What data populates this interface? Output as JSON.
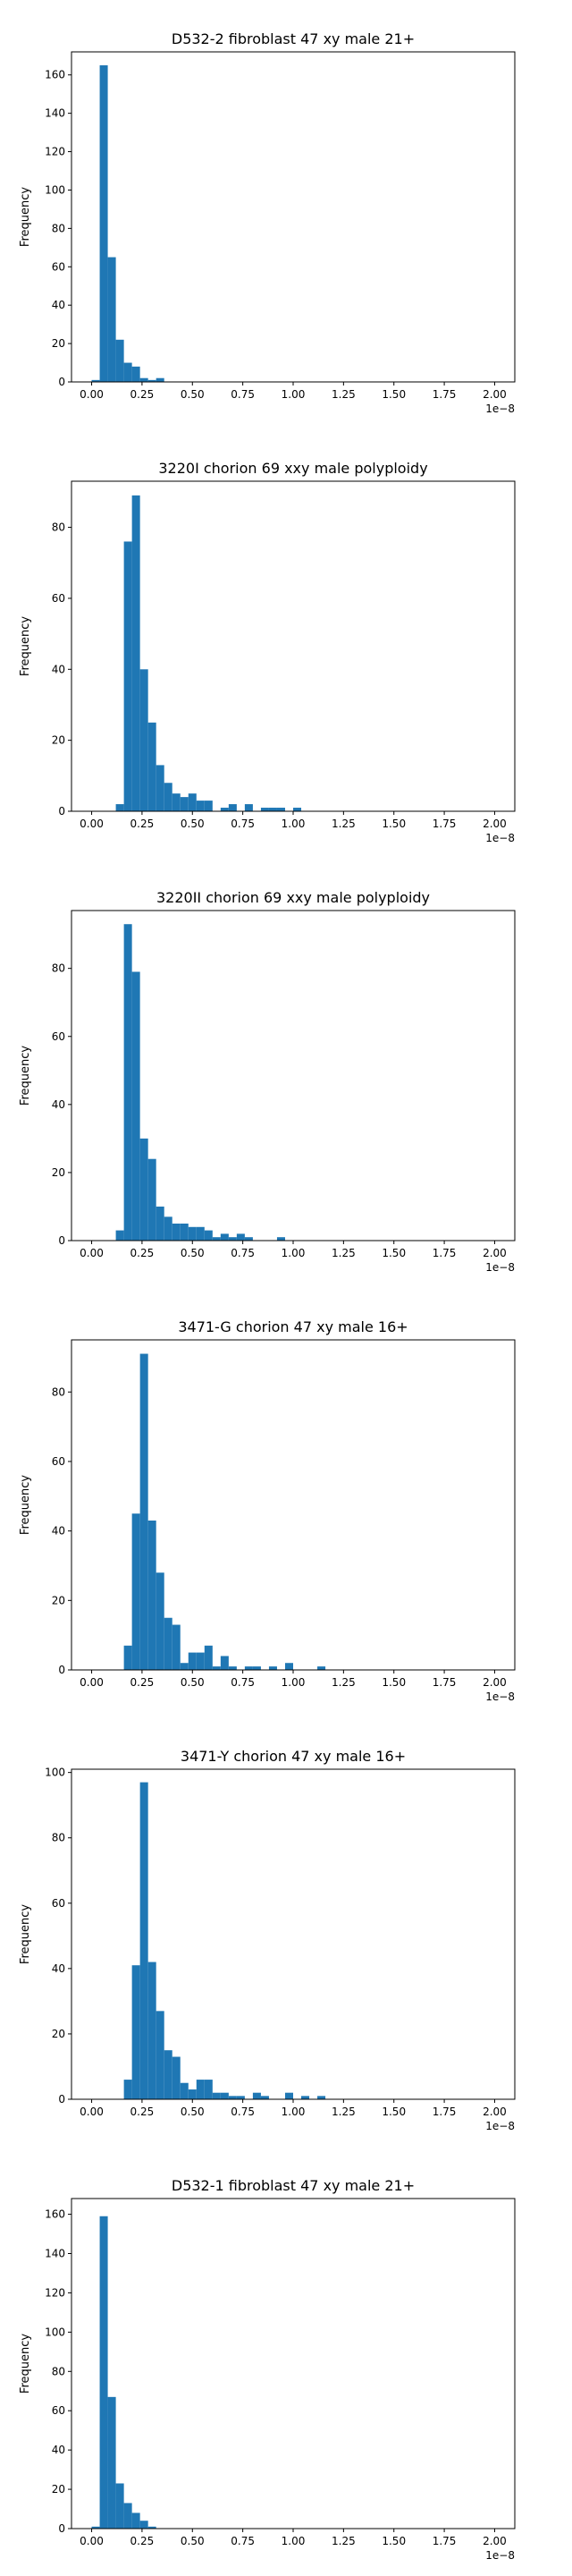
{
  "chart_data": [
    {
      "type": "bar",
      "title": "D532-2 fibroblast 47 xy male 21+",
      "xlabel": "",
      "ylabel": "Frequency",
      "offset_text": "1e−8",
      "xlim": [
        -0.1,
        2.1
      ],
      "ylim": [
        0,
        172
      ],
      "bin_width": 0.04,
      "bin_start": 0.0,
      "values": [
        1,
        165,
        65,
        22,
        10,
        8,
        2,
        1,
        2
      ],
      "xticks": [
        "0.00",
        "0.25",
        "0.50",
        "0.75",
        "1.00",
        "1.25",
        "1.50",
        "1.75",
        "2.00"
      ],
      "yticks": [
        0,
        20,
        40,
        60,
        80,
        100,
        120,
        140,
        160
      ],
      "color": "#1f77b4"
    },
    {
      "type": "bar",
      "title": "3220I chorion 69 xxy male polyploidy",
      "xlabel": "",
      "ylabel": "Frequency",
      "offset_text": "1e−8",
      "xlim": [
        -0.1,
        2.1
      ],
      "ylim": [
        0,
        93
      ],
      "bin_width": 0.04,
      "bin_start": 0.0,
      "values": [
        0,
        0,
        0,
        2,
        76,
        89,
        40,
        25,
        13,
        8,
        5,
        4,
        5,
        3,
        3,
        0,
        1,
        2,
        0,
        2,
        0,
        1,
        1,
        1,
        0,
        1
      ],
      "xticks": [
        "0.00",
        "0.25",
        "0.50",
        "0.75",
        "1.00",
        "1.25",
        "1.50",
        "1.75",
        "2.00"
      ],
      "yticks": [
        0,
        20,
        40,
        60,
        80
      ],
      "color": "#1f77b4"
    },
    {
      "type": "bar",
      "title": "3220II chorion 69 xxy male polyploidy",
      "xlabel": "",
      "ylabel": "Frequency",
      "offset_text": "1e−8",
      "xlim": [
        -0.1,
        2.1
      ],
      "ylim": [
        0,
        97
      ],
      "bin_width": 0.04,
      "bin_start": 0.0,
      "values": [
        0,
        0,
        0,
        3,
        93,
        79,
        30,
        24,
        10,
        7,
        5,
        5,
        4,
        4,
        3,
        1,
        2,
        1,
        2,
        1,
        0,
        0,
        0,
        1
      ],
      "xticks": [
        "0.00",
        "0.25",
        "0.50",
        "0.75",
        "1.00",
        "1.25",
        "1.50",
        "1.75",
        "2.00"
      ],
      "yticks": [
        0,
        20,
        40,
        60,
        80
      ],
      "color": "#1f77b4"
    },
    {
      "type": "bar",
      "title": "3471-G chorion 47 xy male 16+",
      "xlabel": "",
      "ylabel": "Frequency",
      "offset_text": "1e−8",
      "xlim": [
        -0.1,
        2.1
      ],
      "ylim": [
        0,
        95
      ],
      "bin_width": 0.04,
      "bin_start": 0.0,
      "values": [
        0,
        0,
        0,
        0,
        7,
        45,
        91,
        43,
        28,
        15,
        13,
        2,
        5,
        5,
        7,
        1,
        4,
        1,
        0,
        1,
        1,
        0,
        1,
        0,
        2,
        0,
        0,
        0,
        1
      ],
      "xticks": [
        "0.00",
        "0.25",
        "0.50",
        "0.75",
        "1.00",
        "1.25",
        "1.50",
        "1.75",
        "2.00"
      ],
      "yticks": [
        0,
        20,
        40,
        60,
        80
      ],
      "color": "#1f77b4"
    },
    {
      "type": "bar",
      "title": "3471-Y chorion 47 xy male 16+",
      "xlabel": "",
      "ylabel": "Frequency",
      "offset_text": "1e−8",
      "xlim": [
        -0.1,
        2.1
      ],
      "ylim": [
        0,
        101
      ],
      "bin_width": 0.04,
      "bin_start": 0.0,
      "values": [
        0,
        0,
        0,
        0,
        6,
        41,
        97,
        42,
        27,
        15,
        13,
        5,
        3,
        6,
        6,
        2,
        2,
        1,
        1,
        0,
        2,
        1,
        0,
        0,
        2,
        0,
        1,
        0,
        1
      ],
      "xticks": [
        "0.00",
        "0.25",
        "0.50",
        "0.75",
        "1.00",
        "1.25",
        "1.50",
        "1.75",
        "2.00"
      ],
      "yticks": [
        0,
        20,
        40,
        60,
        80,
        100
      ],
      "color": "#1f77b4"
    },
    {
      "type": "bar",
      "title": "D532-1 fibroblast 47 xy male 21+",
      "xlabel": "",
      "ylabel": "Frequency",
      "offset_text": "1e−8",
      "xlim": [
        -0.1,
        2.1
      ],
      "ylim": [
        0,
        168
      ],
      "bin_width": 0.04,
      "bin_start": 0.0,
      "values": [
        1,
        159,
        67,
        23,
        13,
        8,
        4,
        1
      ],
      "xticks": [
        "0.00",
        "0.25",
        "0.50",
        "0.75",
        "1.00",
        "1.25",
        "1.50",
        "1.75",
        "2.00"
      ],
      "yticks": [
        0,
        20,
        40,
        60,
        80,
        100,
        120,
        140,
        160
      ],
      "color": "#1f77b4"
    }
  ]
}
